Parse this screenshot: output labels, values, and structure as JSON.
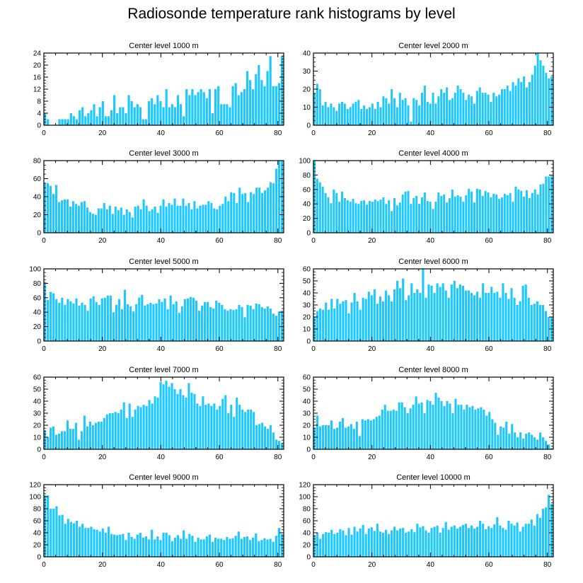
{
  "title": "Radiosonde temperature rank histograms by level",
  "bar_color": "#1ec8ff",
  "chart_data": [
    {
      "type": "bar",
      "title": "Center level 1000 m",
      "xlabel": "",
      "ylabel": "",
      "xlim": [
        0,
        82
      ],
      "xticks": [
        0,
        20,
        40,
        60,
        80
      ],
      "ylim": [
        0,
        24
      ],
      "yticks": [
        0,
        4,
        8,
        12,
        16,
        20,
        24
      ],
      "values": [
        4,
        2,
        0,
        0,
        0,
        2,
        2,
        2,
        2,
        4,
        3,
        2,
        5,
        6,
        3,
        4,
        5,
        7,
        3,
        6,
        8,
        3,
        3,
        5,
        10,
        4,
        6,
        6,
        4,
        10,
        8,
        6,
        7,
        6,
        2,
        2,
        8,
        9,
        7,
        10,
        8,
        6,
        12,
        6,
        7,
        6,
        10,
        7,
        3,
        12,
        10,
        12,
        10,
        11,
        12,
        11,
        9,
        12,
        4,
        12,
        13,
        7,
        7,
        7,
        6,
        13,
        14,
        10,
        11,
        12,
        18,
        15,
        12,
        17,
        20,
        15,
        13,
        18,
        23,
        13,
        13,
        14,
        23
      ]
    },
    {
      "type": "bar",
      "title": "Center level 2000 m",
      "xlabel": "",
      "ylabel": "",
      "xlim": [
        0,
        82
      ],
      "xticks": [
        0,
        20,
        40,
        60,
        80
      ],
      "ylim": [
        0,
        40
      ],
      "yticks": [
        0,
        10,
        20,
        30,
        40
      ],
      "values": [
        18,
        23,
        20,
        11,
        13,
        10,
        12,
        10,
        8,
        12,
        13,
        12,
        9,
        10,
        12,
        13,
        14,
        9,
        11,
        9,
        10,
        12,
        9,
        13,
        10,
        16,
        15,
        12,
        20,
        15,
        10,
        18,
        14,
        15,
        11,
        2,
        15,
        14,
        11,
        18,
        22,
        13,
        12,
        18,
        12,
        16,
        20,
        18,
        21,
        14,
        15,
        18,
        22,
        20,
        18,
        14,
        17,
        16,
        12,
        19,
        21,
        18,
        18,
        17,
        13,
        18,
        16,
        17,
        20,
        20,
        22,
        19,
        24,
        22,
        26,
        24,
        27,
        21,
        24,
        28,
        33,
        40,
        36,
        33,
        29,
        26,
        27
      ]
    },
    {
      "type": "bar",
      "title": "Center level 3000 m",
      "xlabel": "",
      "ylabel": "",
      "xlim": [
        0,
        82
      ],
      "xticks": [
        0,
        20,
        40,
        60,
        80
      ],
      "ylim": [
        0,
        80
      ],
      "yticks": [
        0,
        20,
        40,
        60,
        80
      ],
      "values": [
        55,
        55,
        52,
        43,
        53,
        34,
        36,
        37,
        37,
        29,
        35,
        32,
        30,
        34,
        35,
        28,
        23,
        21,
        20,
        27,
        27,
        33,
        26,
        30,
        21,
        29,
        25,
        28,
        20,
        26,
        23,
        17,
        29,
        30,
        26,
        37,
        30,
        24,
        26,
        29,
        22,
        30,
        37,
        29,
        33,
        31,
        38,
        30,
        30,
        38,
        30,
        33,
        26,
        35,
        27,
        30,
        31,
        31,
        35,
        33,
        27,
        26,
        30,
        32,
        40,
        35,
        45,
        44,
        33,
        50,
        43,
        44,
        34,
        45,
        43,
        50,
        50,
        44,
        47,
        50,
        56,
        55,
        71,
        80,
        80
      ]
    },
    {
      "type": "bar",
      "title": "Center level 4000 m",
      "xlabel": "",
      "ylabel": "",
      "xlim": [
        0,
        82
      ],
      "xticks": [
        0,
        20,
        40,
        60,
        80
      ],
      "ylim": [
        0,
        100
      ],
      "yticks": [
        0,
        20,
        40,
        60,
        80,
        100
      ],
      "values": [
        100,
        75,
        70,
        64,
        55,
        49,
        41,
        60,
        55,
        43,
        57,
        48,
        45,
        43,
        47,
        41,
        40,
        44,
        45,
        39,
        44,
        43,
        46,
        44,
        46,
        49,
        40,
        45,
        30,
        48,
        38,
        42,
        53,
        57,
        58,
        40,
        48,
        51,
        40,
        49,
        56,
        44,
        43,
        33,
        43,
        56,
        51,
        53,
        42,
        48,
        60,
        50,
        52,
        50,
        43,
        52,
        61,
        57,
        42,
        61,
        60,
        51,
        58,
        56,
        49,
        54,
        53,
        47,
        49,
        54,
        52,
        55,
        43,
        64,
        60,
        58,
        50,
        59,
        48,
        55,
        60,
        53,
        67,
        68,
        78,
        78,
        79
      ]
    },
    {
      "type": "bar",
      "title": "Center level 5000 m",
      "xlabel": "",
      "ylabel": "",
      "xlim": [
        0,
        82
      ],
      "xticks": [
        0,
        20,
        40,
        60,
        80
      ],
      "ylim": [
        0,
        100
      ],
      "yticks": [
        0,
        20,
        40,
        60,
        80,
        100
      ],
      "values": [
        82,
        57,
        68,
        66,
        58,
        53,
        60,
        50,
        58,
        55,
        52,
        59,
        49,
        53,
        50,
        42,
        59,
        62,
        54,
        50,
        59,
        60,
        63,
        63,
        40,
        50,
        58,
        44,
        71,
        51,
        48,
        41,
        51,
        60,
        64,
        49,
        51,
        53,
        51,
        52,
        58,
        54,
        59,
        44,
        63,
        51,
        55,
        39,
        48,
        58,
        59,
        61,
        60,
        56,
        42,
        49,
        54,
        54,
        47,
        45,
        56,
        53,
        50,
        44,
        42,
        44,
        43,
        44,
        50,
        47,
        33,
        50,
        49,
        44,
        52,
        51,
        47,
        45,
        48,
        45,
        38,
        35,
        41,
        42
      ]
    },
    {
      "type": "bar",
      "title": "Center level 6000 m",
      "xlabel": "",
      "ylabel": "",
      "xlim": [
        0,
        82
      ],
      "xticks": [
        0,
        20,
        40,
        60,
        80
      ],
      "ylim": [
        0,
        60
      ],
      "yticks": [
        0,
        10,
        20,
        30,
        40,
        50,
        60
      ],
      "values": [
        20,
        25,
        27,
        26,
        32,
        26,
        35,
        27,
        35,
        31,
        33,
        34,
        23,
        32,
        40,
        33,
        26,
        36,
        35,
        41,
        38,
        43,
        31,
        37,
        33,
        42,
        38,
        33,
        43,
        50,
        44,
        52,
        34,
        38,
        48,
        40,
        43,
        40,
        60,
        36,
        47,
        46,
        40,
        48,
        45,
        48,
        42,
        36,
        47,
        50,
        44,
        47,
        46,
        42,
        42,
        40,
        38,
        41,
        36,
        48,
        40,
        40,
        45,
        40,
        41,
        36,
        48,
        40,
        35,
        44,
        36,
        30,
        33,
        46,
        47,
        36,
        30,
        31,
        33,
        30,
        30,
        25,
        20,
        20
      ]
    },
    {
      "type": "bar",
      "title": "Center level 7000 m",
      "xlabel": "",
      "ylabel": "",
      "xlim": [
        0,
        82
      ],
      "xticks": [
        0,
        20,
        40,
        60,
        80
      ],
      "ylim": [
        0,
        60
      ],
      "yticks": [
        0,
        10,
        20,
        30,
        40,
        50,
        60
      ],
      "values": [
        16,
        10,
        18,
        19,
        12,
        13,
        15,
        15,
        24,
        17,
        17,
        22,
        8,
        15,
        28,
        19,
        23,
        20,
        22,
        23,
        23,
        26,
        29,
        30,
        30,
        31,
        30,
        33,
        39,
        26,
        38,
        27,
        33,
        36,
        35,
        37,
        36,
        41,
        38,
        44,
        43,
        56,
        54,
        57,
        52,
        55,
        50,
        46,
        50,
        45,
        43,
        55,
        47,
        46,
        38,
        36,
        44,
        37,
        38,
        36,
        38,
        33,
        36,
        42,
        45,
        30,
        37,
        27,
        43,
        37,
        33,
        31,
        33,
        33,
        31,
        20,
        21,
        22,
        19,
        17,
        20,
        14,
        8,
        7,
        5
      ]
    },
    {
      "type": "bar",
      "title": "Center level 8000 m",
      "xlabel": "",
      "ylabel": "",
      "xlim": [
        0,
        82
      ],
      "xticks": [
        0,
        20,
        40,
        60,
        80
      ],
      "ylim": [
        0,
        60
      ],
      "yticks": [
        0,
        10,
        20,
        30,
        40,
        50,
        60
      ],
      "values": [
        18,
        28,
        19,
        20,
        20,
        20,
        24,
        17,
        18,
        23,
        26,
        18,
        19,
        21,
        17,
        23,
        11,
        25,
        24,
        25,
        24,
        25,
        27,
        28,
        33,
        37,
        32,
        32,
        33,
        32,
        39,
        39,
        35,
        30,
        34,
        37,
        44,
        38,
        39,
        30,
        41,
        40,
        37,
        47,
        43,
        40,
        36,
        40,
        38,
        30,
        42,
        37,
        37,
        33,
        37,
        35,
        36,
        33,
        34,
        35,
        33,
        28,
        31,
        25,
        22,
        12,
        19,
        18,
        23,
        13,
        21,
        14,
        10,
        14,
        9,
        13,
        14,
        12,
        10,
        8,
        14,
        10,
        7,
        4,
        1
      ]
    },
    {
      "type": "bar",
      "title": "Center level 9000 m",
      "xlabel": "",
      "ylabel": "",
      "xlim": [
        0,
        82
      ],
      "xticks": [
        0,
        20,
        40,
        60,
        80
      ],
      "ylim": [
        0,
        120
      ],
      "yticks": [
        0,
        20,
        40,
        60,
        80,
        100,
        120
      ],
      "values": [
        102,
        102,
        80,
        80,
        84,
        69,
        70,
        55,
        63,
        58,
        56,
        60,
        50,
        55,
        48,
        48,
        50,
        46,
        45,
        42,
        47,
        40,
        50,
        38,
        37,
        36,
        37,
        38,
        28,
        40,
        33,
        30,
        37,
        40,
        32,
        34,
        29,
        45,
        29,
        34,
        28,
        40,
        40,
        36,
        26,
        32,
        36,
        30,
        44,
        30,
        38,
        35,
        25,
        32,
        29,
        29,
        34,
        37,
        25,
        32,
        30,
        30,
        28,
        33,
        30,
        31,
        35,
        42,
        30,
        33,
        34,
        28,
        32,
        39,
        26,
        28,
        31,
        29,
        30,
        25,
        35,
        48,
        38
      ]
    },
    {
      "type": "bar",
      "title": "Center level 10000 m",
      "xlabel": "",
      "ylabel": "",
      "xlim": [
        0,
        82
      ],
      "xticks": [
        0,
        20,
        40,
        60,
        80
      ],
      "ylim": [
        0,
        120
      ],
      "yticks": [
        0,
        20,
        40,
        60,
        80,
        100,
        120
      ],
      "values": [
        36,
        40,
        30,
        38,
        41,
        40,
        45,
        38,
        40,
        46,
        44,
        36,
        48,
        37,
        50,
        42,
        47,
        53,
        38,
        47,
        49,
        43,
        55,
        42,
        40,
        45,
        38,
        44,
        50,
        44,
        47,
        48,
        40,
        42,
        46,
        41,
        55,
        49,
        51,
        44,
        40,
        48,
        50,
        52,
        40,
        48,
        58,
        45,
        50,
        52,
        47,
        50,
        53,
        55,
        48,
        52,
        47,
        50,
        60,
        55,
        46,
        51,
        48,
        54,
        66,
        52,
        48,
        45,
        60,
        55,
        52,
        57,
        42,
        50,
        55,
        55,
        62,
        52,
        71,
        65,
        80,
        82,
        103,
        88
      ]
    }
  ]
}
